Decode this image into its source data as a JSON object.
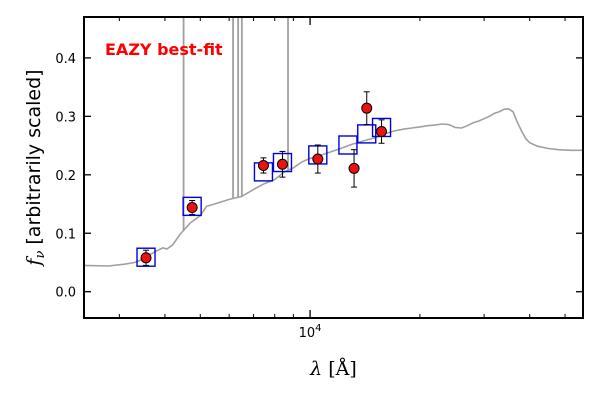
{
  "chart_data": {
    "type": "scatter",
    "annotation": {
      "text": "EAZY best-fit",
      "color": "#ff0000"
    },
    "xlabel": {
      "italic": "λ",
      "unit": "[Å]"
    },
    "ylabel": {
      "symbol": "f",
      "subscript": "ν",
      "text": "[arbitrarily scaled]"
    },
    "xscale": "log",
    "xlim": [
      2400,
      56000
    ],
    "ylim": [
      -0.045,
      0.47
    ],
    "grid": false,
    "y_ticks": [
      {
        "value": 0.0,
        "label": "0.0"
      },
      {
        "value": 0.1,
        "label": "0.1"
      },
      {
        "value": 0.2,
        "label": "0.2"
      },
      {
        "value": 0.3,
        "label": "0.3"
      },
      {
        "value": 0.4,
        "label": "0.4"
      }
    ],
    "x_major_tick": {
      "value": 10000,
      "label_base": "10",
      "label_exp": "4"
    },
    "x_minor_ticks": [
      3000,
      4000,
      5000,
      6000,
      7000,
      8000,
      9000,
      20000,
      30000,
      40000,
      50000
    ],
    "series": [
      {
        "kind": "model_spectrum",
        "color": "#a0a0a0",
        "x": [
          2400,
          2800,
          3100,
          3300,
          3500,
          3650,
          3800,
          3950,
          4050,
          4200,
          4400,
          4700,
          5000,
          5200,
          5600,
          6000,
          6500,
          7000,
          7500,
          8000,
          8500,
          9000,
          9500,
          10000,
          10500,
          11000,
          11500,
          12000,
          12500,
          13000,
          13500,
          14000,
          15000,
          16000,
          17000,
          18000,
          19000,
          20000,
          21000,
          22000,
          23000,
          24000,
          25000,
          26000,
          27000,
          28000,
          29000,
          30000,
          31000,
          32000,
          33000,
          34000,
          35000,
          36000,
          37000,
          38000,
          39000,
          40000,
          42000,
          45000,
          48000,
          52000,
          56000
        ],
        "y": [
          0.045,
          0.044,
          0.047,
          0.05,
          0.056,
          0.064,
          0.07,
          0.075,
          0.073,
          0.08,
          0.098,
          0.118,
          0.13,
          0.146,
          0.152,
          0.158,
          0.163,
          0.175,
          0.185,
          0.192,
          0.205,
          0.212,
          0.222,
          0.228,
          0.232,
          0.236,
          0.24,
          0.244,
          0.248,
          0.252,
          0.255,
          0.258,
          0.263,
          0.27,
          0.275,
          0.278,
          0.28,
          0.282,
          0.284,
          0.285,
          0.287,
          0.286,
          0.281,
          0.28,
          0.284,
          0.289,
          0.292,
          0.296,
          0.3,
          0.305,
          0.308,
          0.312,
          0.313,
          0.308,
          0.29,
          0.275,
          0.262,
          0.255,
          0.249,
          0.245,
          0.243,
          0.242,
          0.242
        ]
      },
      {
        "kind": "model_photometry",
        "color": "#0000dd",
        "x": [
          3550,
          4750,
          7450,
          8400,
          10500,
          12700,
          14300,
          15700
        ],
        "y": [
          0.059,
          0.146,
          0.205,
          0.221,
          0.234,
          0.251,
          0.27,
          0.281
        ]
      },
      {
        "kind": "observed_photometry",
        "color": "#ee1111",
        "x": [
          3550,
          4750,
          7450,
          8400,
          10500,
          13200,
          14300,
          15700
        ],
        "y": [
          0.058,
          0.144,
          0.216,
          0.218,
          0.227,
          0.211,
          0.314,
          0.274
        ],
        "yerr": [
          0.013,
          0.012,
          0.013,
          0.022,
          0.024,
          0.032,
          0.028,
          0.02
        ]
      }
    ],
    "emission_lines": [
      {
        "x": 4500,
        "top": 0.47
      },
      {
        "x": 6150,
        "top": 0.47
      },
      {
        "x": 6350,
        "top": 0.47
      },
      {
        "x": 6500,
        "top": 0.47
      },
      {
        "x": 8700,
        "top": 0.47
      }
    ]
  }
}
